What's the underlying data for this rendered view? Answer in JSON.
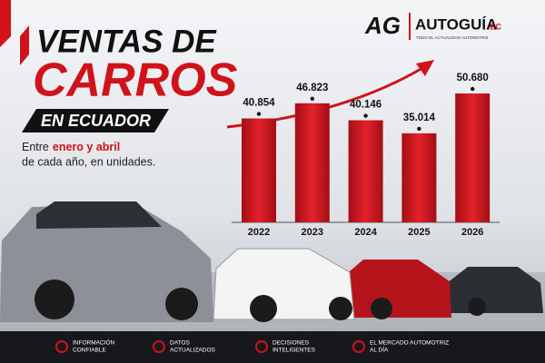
{
  "logo": {
    "mark": "AG",
    "name": "AUTOGUÍA",
    "suffix": ".EC",
    "tagline": "TODO EL ACTUALIDAD AUTOMOTRIZ"
  },
  "chart_data": {
    "type": "bar",
    "title_lines": [
      "VENTAS DE",
      "CARROS"
    ],
    "title_badge": "EN ECUADOR",
    "subtitle": {
      "intro": "Entre",
      "highlight": "enero y abril",
      "rest": "de cada año, en unidades."
    },
    "categories": [
      "2022",
      "2023",
      "2024",
      "2025",
      "2026"
    ],
    "values": [
      40854,
      46823,
      40146,
      35014,
      50680
    ],
    "value_labels": [
      "40.854",
      "46.823",
      "40.146",
      "35.014",
      "50.680"
    ],
    "color": "#d0121b"
  },
  "footer": [
    {
      "lines": [
        "INFORMACIÓN",
        "CONFIABLE"
      ]
    },
    {
      "lines": [
        "DATOS",
        "ACTUALIZADOS"
      ]
    },
    {
      "lines": [
        "DECISIONES",
        "INTELIGENTES"
      ]
    },
    {
      "lines": [
        "EL MERCADO AUTOMOTRIZ",
        "AL DÍA"
      ]
    }
  ]
}
